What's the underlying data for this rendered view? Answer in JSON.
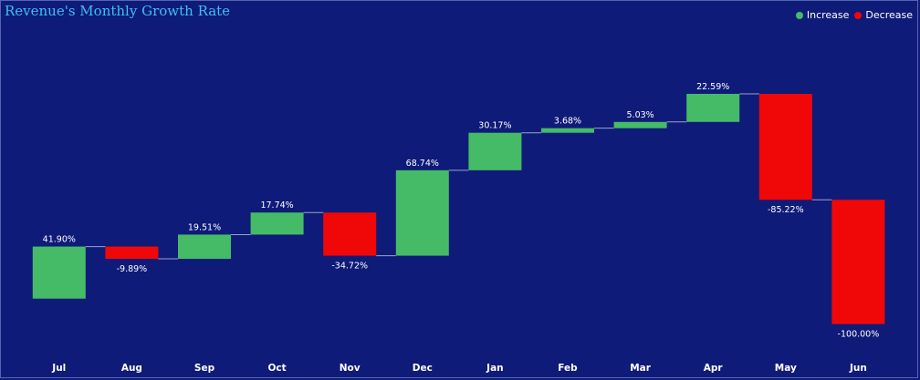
{
  "colors": {
    "background": "#0f1b78",
    "increase": "#45bb67",
    "decrease": "#f00808",
    "title": "#3fc0f0",
    "connector": "#9aa3cc"
  },
  "chart_data": {
    "type": "waterfall",
    "title": "Revenue's Monthly Growth Rate",
    "legend": [
      {
        "name": "Increase",
        "color": "#45bb67"
      },
      {
        "name": "Decrease",
        "color": "#f00808"
      }
    ],
    "legend_position": "top-right",
    "categories": [
      "Jul",
      "Aug",
      "Sep",
      "Oct",
      "Nov",
      "Dec",
      "Jan",
      "Feb",
      "Mar",
      "Apr",
      "May",
      "Jun"
    ],
    "values": [
      41.9,
      -9.89,
      19.51,
      17.74,
      -34.72,
      68.74,
      30.17,
      3.68,
      5.03,
      22.59,
      -85.22,
      -100.0
    ],
    "labels": [
      "41.90%",
      "-9.89%",
      "19.51%",
      "17.74%",
      "-34.72%",
      "68.74%",
      "30.17%",
      "3.68%",
      "5.03%",
      "22.59%",
      "-85.22%",
      "-100.00%"
    ],
    "ylim": [
      -42,
      230
    ],
    "grid": false
  }
}
